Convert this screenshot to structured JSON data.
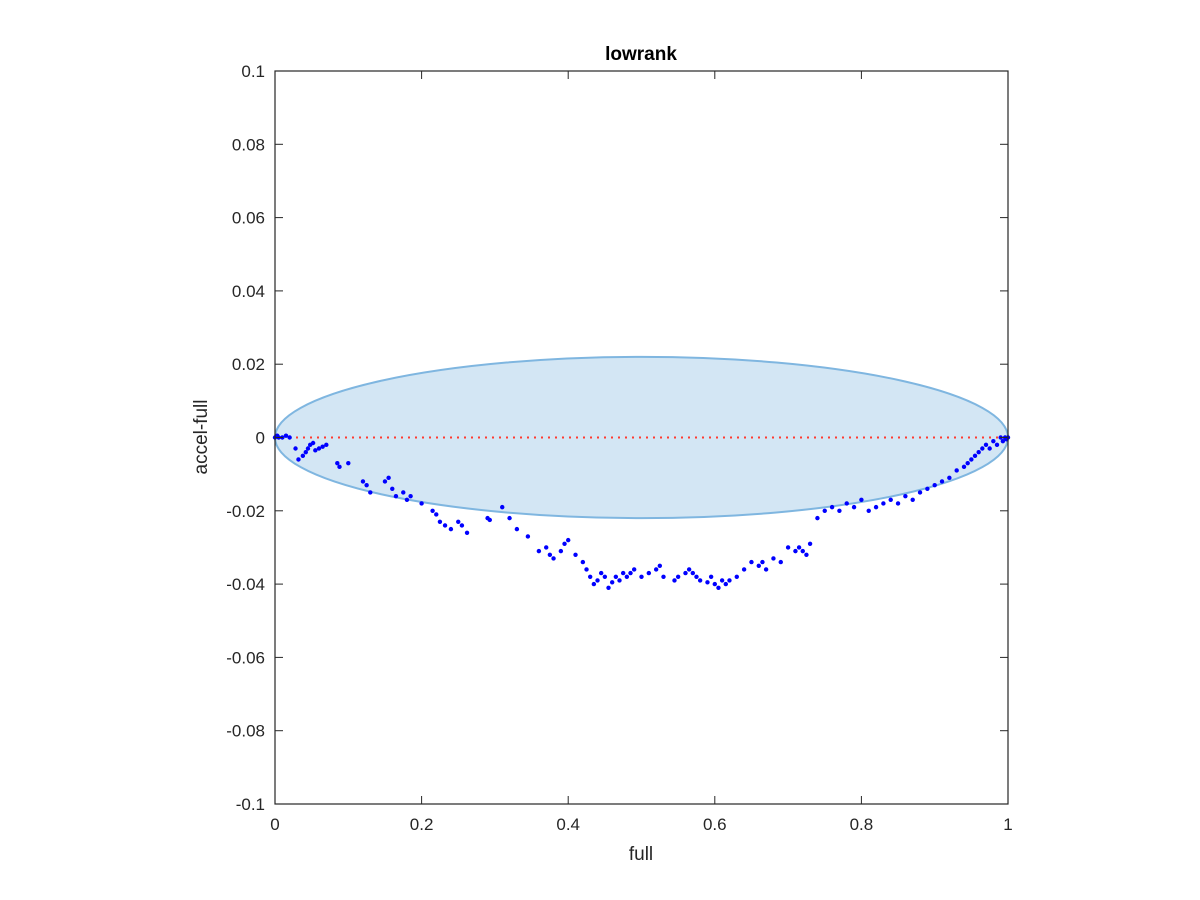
{
  "chart_data": {
    "type": "scatter",
    "title": "lowrank",
    "xlabel": "full",
    "ylabel": "accel-full",
    "xlim": [
      0,
      1
    ],
    "ylim": [
      -0.1,
      0.1
    ],
    "grid": false,
    "legend": "none",
    "xticks": [
      0,
      0.2,
      0.4,
      0.6,
      0.8,
      1
    ],
    "xtick_labels": [
      "0",
      "0.2",
      "0.4",
      "0.6",
      "0.8",
      "1"
    ],
    "yticks": [
      0.1,
      0.08,
      0.06,
      0.04,
      0.02,
      0,
      -0.02,
      -0.04,
      -0.06,
      -0.08,
      -0.1
    ],
    "ytick_labels": [
      "0.1",
      "0.08",
      "0.06",
      "0.04",
      "0.02",
      "0",
      "-0.02",
      "-0.04",
      "-0.06",
      "-0.08",
      "-0.1"
    ],
    "ellipse": {
      "center_x": 0.5,
      "center_y": 0,
      "radius_x": 0.5,
      "radius_y": 0.022,
      "fill_color": "#d3e6f4",
      "edge_color": "#7fb6e0"
    },
    "reference_line": {
      "y": 0,
      "x_range": [
        0,
        1
      ],
      "color": "#ff3b30",
      "style": "dotted"
    },
    "series": [
      {
        "marker_color": "#0000ff",
        "x": [
          0.0,
          0.003,
          0.005,
          0.01,
          0.015,
          0.02,
          0.028,
          0.032,
          0.038,
          0.042,
          0.045,
          0.048,
          0.052,
          0.055,
          0.06,
          0.065,
          0.07,
          0.085,
          0.088,
          0.1,
          0.12,
          0.125,
          0.13,
          0.15,
          0.155,
          0.16,
          0.165,
          0.175,
          0.18,
          0.185,
          0.2,
          0.215,
          0.22,
          0.225,
          0.232,
          0.24,
          0.25,
          0.255,
          0.262,
          0.29,
          0.293,
          0.31,
          0.32,
          0.33,
          0.345,
          0.36,
          0.37,
          0.375,
          0.38,
          0.39,
          0.395,
          0.4,
          0.41,
          0.42,
          0.425,
          0.43,
          0.435,
          0.44,
          0.445,
          0.45,
          0.455,
          0.46,
          0.465,
          0.47,
          0.475,
          0.48,
          0.485,
          0.49,
          0.5,
          0.51,
          0.52,
          0.525,
          0.53,
          0.545,
          0.55,
          0.56,
          0.565,
          0.57,
          0.575,
          0.58,
          0.59,
          0.595,
          0.6,
          0.605,
          0.61,
          0.615,
          0.62,
          0.63,
          0.64,
          0.65,
          0.66,
          0.665,
          0.67,
          0.68,
          0.69,
          0.7,
          0.71,
          0.715,
          0.72,
          0.725,
          0.73,
          0.74,
          0.75,
          0.76,
          0.77,
          0.78,
          0.79,
          0.8,
          0.81,
          0.82,
          0.83,
          0.84,
          0.85,
          0.86,
          0.87,
          0.88,
          0.89,
          0.9,
          0.91,
          0.92,
          0.93,
          0.94,
          0.945,
          0.95,
          0.955,
          0.96,
          0.965,
          0.97,
          0.975,
          0.98,
          0.985,
          0.99,
          0.993,
          0.996,
          0.998,
          1.0
        ],
        "y": [
          0.0,
          0.0005,
          0.0,
          0.0,
          0.0005,
          0.0,
          -0.003,
          -0.006,
          -0.005,
          -0.004,
          -0.003,
          -0.002,
          -0.0015,
          -0.0035,
          -0.003,
          -0.0025,
          -0.002,
          -0.007,
          -0.008,
          -0.007,
          -0.012,
          -0.013,
          -0.015,
          -0.012,
          -0.011,
          -0.014,
          -0.016,
          -0.015,
          -0.017,
          -0.016,
          -0.018,
          -0.02,
          -0.021,
          -0.023,
          -0.024,
          -0.025,
          -0.023,
          -0.024,
          -0.026,
          -0.022,
          -0.0225,
          -0.019,
          -0.022,
          -0.025,
          -0.027,
          -0.031,
          -0.03,
          -0.032,
          -0.033,
          -0.031,
          -0.029,
          -0.028,
          -0.032,
          -0.034,
          -0.036,
          -0.038,
          -0.04,
          -0.039,
          -0.037,
          -0.038,
          -0.041,
          -0.0395,
          -0.038,
          -0.039,
          -0.037,
          -0.038,
          -0.037,
          -0.036,
          -0.038,
          -0.037,
          -0.036,
          -0.035,
          -0.038,
          -0.039,
          -0.038,
          -0.037,
          -0.036,
          -0.037,
          -0.038,
          -0.039,
          -0.0395,
          -0.038,
          -0.04,
          -0.041,
          -0.039,
          -0.04,
          -0.039,
          -0.038,
          -0.036,
          -0.034,
          -0.035,
          -0.034,
          -0.036,
          -0.033,
          -0.034,
          -0.03,
          -0.031,
          -0.03,
          -0.031,
          -0.032,
          -0.029,
          -0.022,
          -0.02,
          -0.019,
          -0.02,
          -0.018,
          -0.019,
          -0.017,
          -0.02,
          -0.019,
          -0.018,
          -0.017,
          -0.018,
          -0.016,
          -0.017,
          -0.015,
          -0.014,
          -0.013,
          -0.012,
          -0.011,
          -0.009,
          -0.008,
          -0.007,
          -0.006,
          -0.005,
          -0.004,
          -0.003,
          -0.002,
          -0.003,
          -0.001,
          -0.002,
          0.0,
          -0.001,
          0.0,
          -0.0005,
          0.0
        ]
      }
    ]
  }
}
